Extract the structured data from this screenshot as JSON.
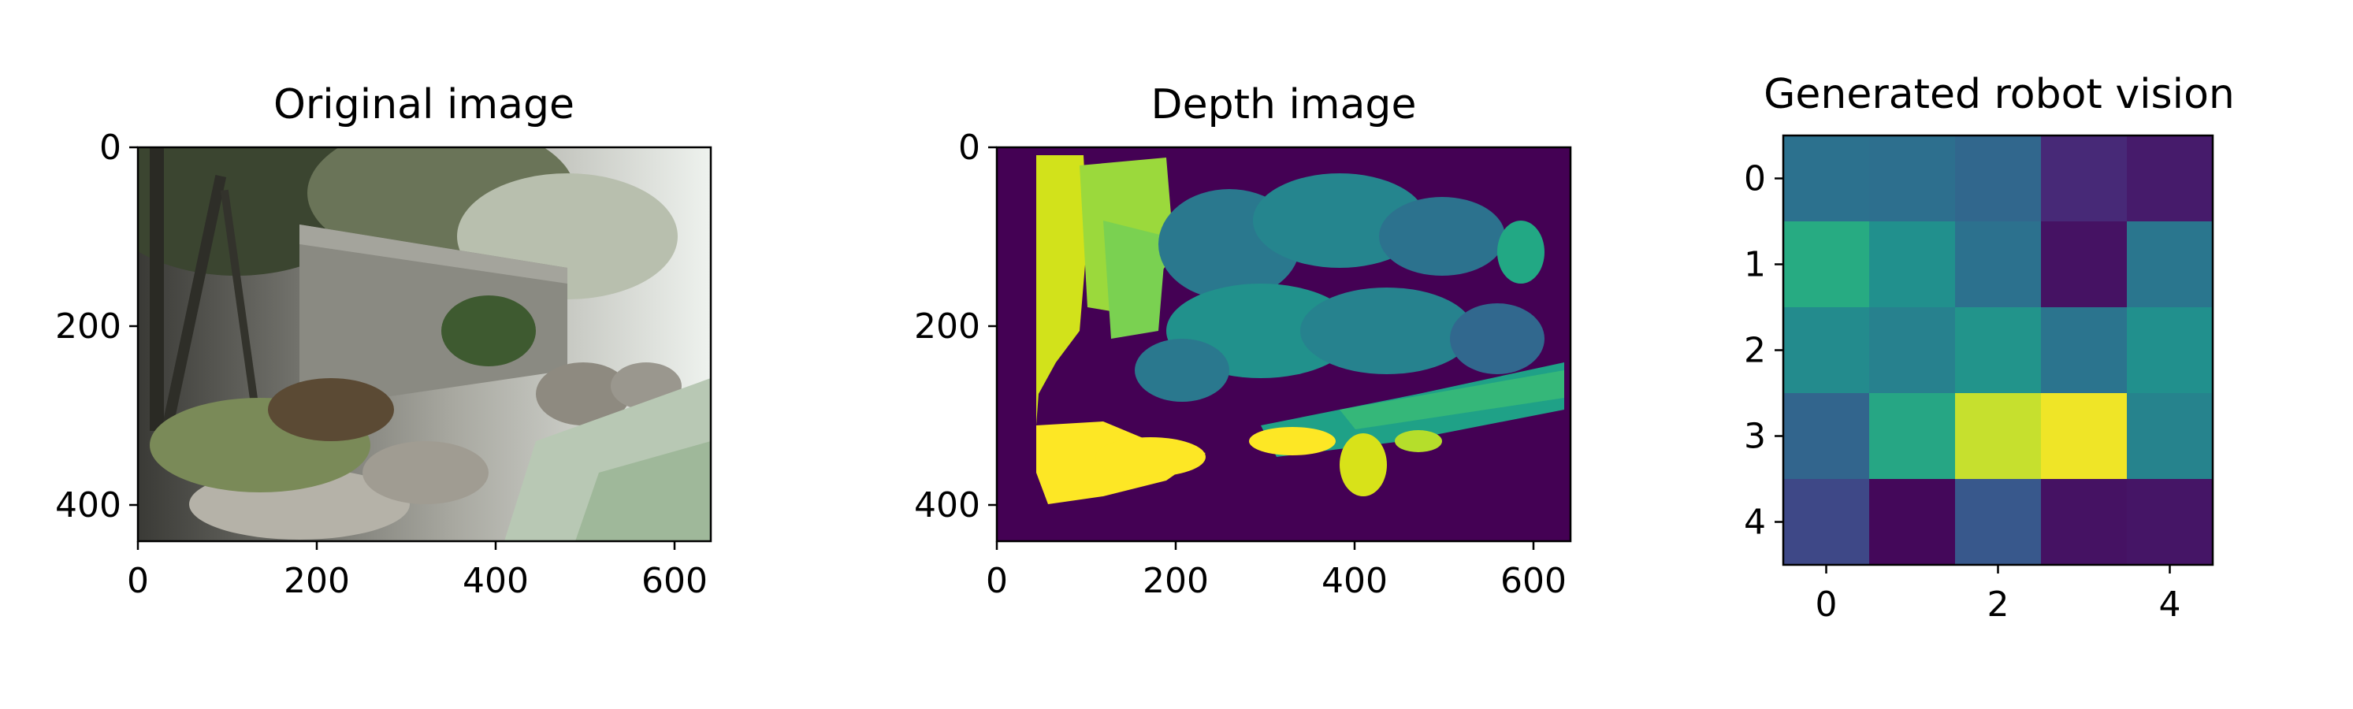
{
  "chart_data": [
    {
      "type": "image",
      "title": "Original image",
      "xlim": [
        0,
        640
      ],
      "ylim": [
        0,
        440
      ],
      "xticks": [
        0,
        200,
        400,
        600
      ],
      "yticks": [
        0,
        200,
        400
      ]
    },
    {
      "type": "heatmap",
      "title": "Depth image",
      "xlim": [
        0,
        640
      ],
      "ylim": [
        0,
        440
      ],
      "xticks": [
        0,
        200,
        400,
        600
      ],
      "yticks": [
        0,
        200,
        400
      ],
      "colormap": "viridis"
    },
    {
      "type": "heatmap",
      "title": "Generated robot vision",
      "xticks": [
        0,
        2,
        4
      ],
      "yticks": [
        0,
        1,
        2,
        3,
        4
      ],
      "colormap": "viridis",
      "values": [
        [
          0.38,
          0.37,
          0.34,
          0.12,
          0.08
        ],
        [
          0.62,
          0.5,
          0.38,
          0.05,
          0.4
        ],
        [
          0.48,
          0.44,
          0.52,
          0.39,
          0.5
        ],
        [
          0.33,
          0.6,
          0.92,
          0.98,
          0.45
        ],
        [
          0.22,
          0.02,
          0.28,
          0.05,
          0.06
        ]
      ]
    }
  ]
}
